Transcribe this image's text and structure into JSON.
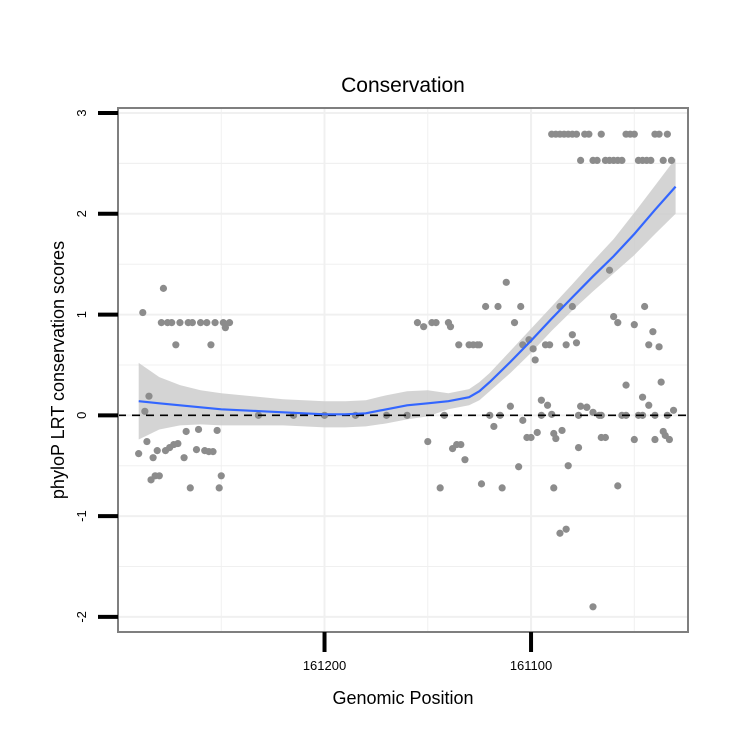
{
  "chart_data": {
    "type": "scatter",
    "title": "Conservation",
    "xlabel": "Genomic Position",
    "ylabel": "phyloP LRT conservation scores",
    "xlim": [
      161300,
      161024
    ],
    "ylim": [
      -2.15,
      3.05
    ],
    "x_ticks": [
      161200,
      161100
    ],
    "x_tick_labels": [
      "161200",
      "161100"
    ],
    "y_ticks": [
      -2,
      -1,
      0,
      1,
      2,
      3
    ],
    "y_tick_labels": [
      "-2",
      "-1",
      "0",
      "1",
      "2",
      "3"
    ],
    "reference_line": {
      "y": 0,
      "style": "dashed"
    },
    "grid": true,
    "colors": {
      "points": "#8c8c8c",
      "smooth_line": "#3366ff",
      "ribbon": "#cccccc",
      "panel_border": "#7f7f7f",
      "grid": "#f0f0f0"
    },
    "smooth_fit": {
      "x": [
        161290,
        161280,
        161270,
        161260,
        161250,
        161240,
        161230,
        161220,
        161210,
        161200,
        161190,
        161180,
        161170,
        161160,
        161150,
        161140,
        161130,
        161125,
        161120,
        161110,
        161100,
        161090,
        161080,
        161070,
        161060,
        161050,
        161040,
        161030
      ],
      "y": [
        0.14,
        0.12,
        0.1,
        0.08,
        0.06,
        0.05,
        0.04,
        0.03,
        0.02,
        0.01,
        0.01,
        0.02,
        0.06,
        0.1,
        0.12,
        0.14,
        0.18,
        0.24,
        0.33,
        0.53,
        0.74,
        0.96,
        1.17,
        1.38,
        1.58,
        1.8,
        2.04,
        2.27
      ],
      "ci_upper": [
        0.52,
        0.38,
        0.3,
        0.25,
        0.22,
        0.2,
        0.18,
        0.16,
        0.15,
        0.14,
        0.14,
        0.15,
        0.2,
        0.24,
        0.25,
        0.22,
        0.26,
        0.33,
        0.42,
        0.64,
        0.86,
        1.08,
        1.3,
        1.53,
        1.75,
        2.01,
        2.28,
        2.55
      ],
      "ci_lower": [
        -0.24,
        -0.14,
        -0.1,
        -0.09,
        -0.1,
        -0.1,
        -0.1,
        -0.1,
        -0.11,
        -0.12,
        -0.12,
        -0.11,
        -0.08,
        -0.04,
        -0.01,
        0.06,
        0.1,
        0.15,
        0.24,
        0.42,
        0.62,
        0.84,
        1.04,
        1.23,
        1.41,
        1.59,
        1.8,
        2.0
      ]
    },
    "series": [
      {
        "name": "scores",
        "x": [
          161290,
          161288,
          161287,
          161286,
          161285,
          161284,
          161283,
          161282,
          161281,
          161280,
          161279,
          161278,
          161277,
          161276,
          161275,
          161274,
          161273,
          161272,
          161271,
          161270,
          161268,
          161267,
          161266,
          161265,
          161264,
          161262,
          161261,
          161260,
          161258,
          161257,
          161256,
          161255,
          161254,
          161253,
          161252,
          161251,
          161250,
          161249,
          161248,
          161246,
          161232,
          161215,
          161200,
          161185,
          161170,
          161160,
          161155,
          161152,
          161150,
          161148,
          161146,
          161144,
          161142,
          161140,
          161139,
          161138,
          161136,
          161135,
          161134,
          161132,
          161130,
          161128,
          161126,
          161125,
          161124,
          161122,
          161120,
          161118,
          161116,
          161115,
          161114,
          161112,
          161110,
          161108,
          161106,
          161105,
          161104,
          161102,
          161100,
          161099,
          161097,
          161095,
          161093,
          161091,
          161090,
          161089,
          161088,
          161086,
          161085,
          161083,
          161082,
          161080,
          161078,
          161077,
          161076,
          161073,
          161070,
          161067,
          161066,
          161064,
          161060,
          161058,
          161056,
          161054,
          161050,
          161048,
          161046,
          161045,
          161043,
          161041,
          161040,
          161038,
          161036,
          161034
        ],
        "y": [
          -0.38,
          1.02,
          0.04,
          -0.26,
          0.19,
          -0.64,
          -0.42,
          -0.6,
          -0.35,
          -0.6,
          0.92,
          1.26,
          -0.35,
          0.92,
          -0.32,
          0.92,
          -0.29,
          0.7,
          -0.28,
          0.92,
          -0.42,
          -0.16,
          0.92,
          -0.72,
          0.92,
          -0.34,
          -0.14,
          0.92,
          -0.35,
          0.92,
          -0.36,
          0.7,
          -0.36,
          0.92,
          -0.15,
          -0.72,
          -0.6,
          0.92,
          0.87,
          0.92,
          0.0,
          0.0,
          0.0,
          0.0,
          0.0,
          0.0,
          0.92,
          0.88,
          -0.26,
          0.92,
          0.92,
          -0.72,
          0.0,
          0.92,
          0.88,
          -0.33,
          -0.29,
          0.7,
          -0.29,
          -0.44,
          0.7,
          0.7,
          0.7,
          0.7,
          -0.68,
          1.08,
          0.0,
          -0.11,
          1.08,
          0.0,
          -0.72,
          1.32,
          0.09,
          0.92,
          -0.51,
          1.08,
          0.7,
          -0.22,
          -0.22,
          0.66,
          -0.17,
          0.0,
          0.7,
          0.7,
          0.01,
          -0.18,
          -0.23,
          1.08,
          -0.15,
          0.7,
          -0.5,
          1.08,
          0.72,
          0.0,
          0.09,
          0.08,
          0.03,
          0.0,
          0.0,
          -0.22,
          0.98,
          0.92,
          0.0,
          0.0,
          0.9,
          0.0,
          0.0,
          1.08,
          0.7,
          0.83,
          0.0,
          0.68,
          -0.16,
          0.0
        ],
        "x_upper_cluster": [
          161090,
          161088,
          161086,
          161084,
          161082,
          161080,
          161078,
          161076,
          161074,
          161072,
          161070,
          161068,
          161066,
          161064,
          161062,
          161060,
          161058,
          161056,
          161054,
          161052,
          161050,
          161048,
          161046,
          161044,
          161042,
          161040,
          161038,
          161036,
          161034,
          161032
        ],
        "y_upper_cluster": [
          2.79,
          2.79,
          2.79,
          2.79,
          2.79,
          2.79,
          2.79,
          2.53,
          2.79,
          2.79,
          2.53,
          2.53,
          2.79,
          2.53,
          2.53,
          2.53,
          2.53,
          2.53,
          2.79,
          2.79,
          2.79,
          2.53,
          2.53,
          2.53,
          2.53,
          2.79,
          2.79,
          2.53,
          2.79,
          2.53
        ],
        "x_extra": [
          161104,
          161101,
          161098,
          161095,
          161092,
          161089,
          161086,
          161083,
          161080,
          161077,
          161073,
          161070,
          161066,
          161062,
          161058,
          161054,
          161050,
          161046,
          161043,
          161040,
          161037,
          161035,
          161033,
          161031
        ],
        "y_extra": [
          -0.05,
          0.75,
          0.55,
          0.15,
          0.1,
          -0.72,
          -1.17,
          -1.13,
          0.8,
          -0.32,
          0.08,
          -1.9,
          -0.22,
          1.44,
          -0.7,
          0.3,
          -0.24,
          0.18,
          0.1,
          -0.24,
          0.33,
          -0.2,
          -0.24,
          0.05
        ]
      }
    ]
  }
}
